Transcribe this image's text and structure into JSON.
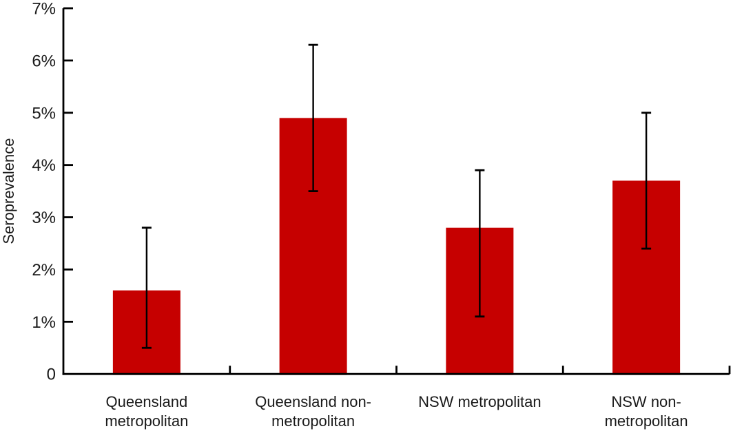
{
  "chart_data": {
    "type": "bar",
    "title": "",
    "xlabel": "",
    "ylabel": "Seroprevalence",
    "ylim": [
      0,
      7
    ],
    "y_ticks": [
      0,
      1,
      2,
      3,
      4,
      5,
      6,
      7
    ],
    "y_tick_labels": [
      "0",
      "1%",
      "2%",
      "3%",
      "4%",
      "5%",
      "6%",
      "7%"
    ],
    "categories": [
      "Queensland metropolitan",
      "Queensland non-metropolitan",
      "NSW metropolitan",
      "NSW non-metropolitan"
    ],
    "category_label_lines": [
      [
        "Queensland",
        "metropolitan"
      ],
      [
        "Queensland non-",
        "metropolitan"
      ],
      [
        "NSW metropolitan"
      ],
      [
        "NSW non-",
        "metropolitan"
      ]
    ],
    "values": [
      1.6,
      4.9,
      2.8,
      3.7
    ],
    "error_low": [
      0.5,
      3.5,
      1.1,
      2.4
    ],
    "error_high": [
      2.8,
      6.3,
      3.9,
      5.0
    ],
    "grid": false,
    "legend": null,
    "colors": {
      "bar": "#c60000",
      "axis": "#000000",
      "error_bar": "#000000",
      "text": "#1a1a1a",
      "background": "#ffffff"
    }
  }
}
